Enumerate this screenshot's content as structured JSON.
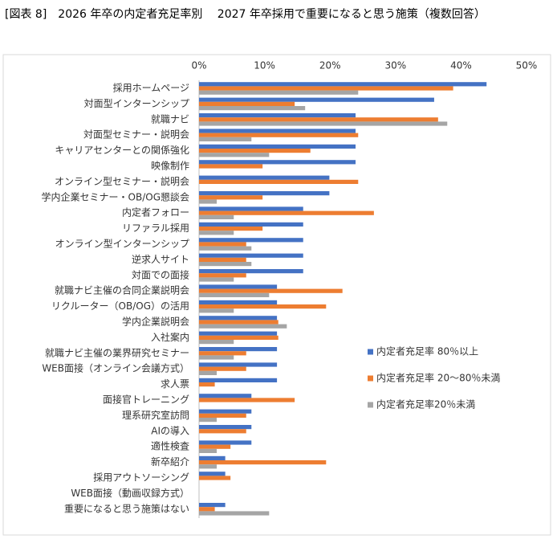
{
  "chart_data": {
    "type": "barh",
    "title": "[図表 8]　2026 年卒の内定者充足率別　 2027 年卒採用で重要になると思う施策（複数回答）",
    "categories": [
      "採用ホームページ",
      "対面型インターンシップ",
      "就職ナビ",
      "対面型セミナー・説明会",
      "キャリアセンターとの関係強化",
      "映像制作",
      "オンライン型セミナー・説明会",
      "学内企業セミナー・OB/OG懇談会",
      "内定者フォロー",
      "リファラル採用",
      "オンライン型インターンシップ",
      "逆求人サイト",
      "対面での面接",
      "就職ナビ主催の合同企業説明会",
      "リクルーター（OB/OG）の活用",
      "学内企業説明会",
      "入社案内",
      "就職ナビ主催の業界研究セミナー",
      "WEB面接（オンライン会議方式）",
      "求人票",
      "面接官トレーニング",
      "理系研究室訪問",
      "AIの導入",
      "適性検査",
      "新卒紹介",
      "採用アウトソーシング",
      "WEB面接（動画収録方式）",
      "重要になると思う施策はない"
    ],
    "series": [
      {
        "name": "内定者充足率 80％以上",
        "color": "#4472c4",
        "values": [
          43.9,
          35.9,
          23.9,
          23.9,
          23.9,
          23.9,
          19.9,
          19.9,
          15.9,
          15.9,
          15.9,
          15.9,
          15.9,
          11.9,
          11.9,
          11.9,
          11.9,
          11.9,
          11.9,
          11.9,
          8.0,
          8.0,
          8.0,
          8.0,
          4.0,
          4.0,
          0,
          4.0
        ]
      },
      {
        "name": "内定者充足率 20～80％未満",
        "color": "#ed7d31",
        "values": [
          38.8,
          14.6,
          36.5,
          24.3,
          17.0,
          9.7,
          24.3,
          9.7,
          26.7,
          9.7,
          7.2,
          7.2,
          7.2,
          21.9,
          19.4,
          12.1,
          12.1,
          7.2,
          7.2,
          2.4,
          14.6,
          7.2,
          7.2,
          4.8,
          19.4,
          4.8,
          0,
          2.4
        ]
      },
      {
        "name": "内定者充足率20％未満",
        "color": "#a5a5a5",
        "values": [
          24.3,
          16.2,
          37.9,
          8.0,
          10.7,
          0,
          0,
          2.7,
          5.3,
          5.3,
          8.0,
          8.0,
          5.3,
          10.7,
          5.3,
          13.4,
          5.3,
          5.3,
          2.7,
          0,
          0,
          2.7,
          0,
          2.7,
          2.7,
          0,
          0,
          10.7
        ]
      }
    ],
    "xlim": [
      0,
      50
    ],
    "xticks": [
      {
        "value": 0,
        "label": "0%"
      },
      {
        "value": 10,
        "label": "10%"
      },
      {
        "value": 20,
        "label": "20%"
      },
      {
        "value": 30,
        "label": "30%"
      },
      {
        "value": 40,
        "label": "40%"
      },
      {
        "value": 50,
        "label": "50%"
      }
    ]
  }
}
